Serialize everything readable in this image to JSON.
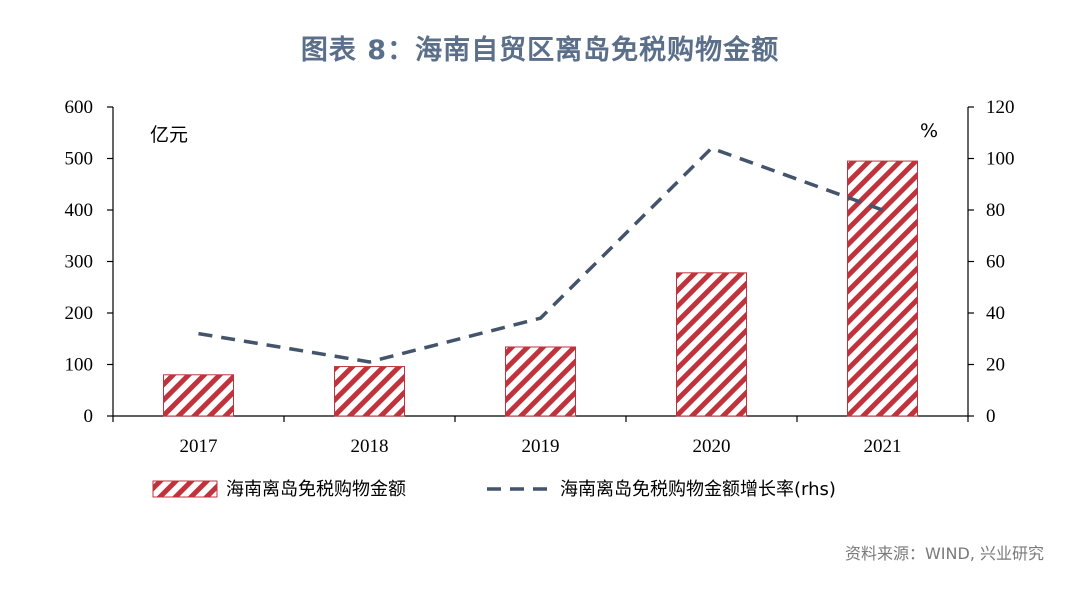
{
  "title": "图表 8：海南自贸区离岛免税购物金额",
  "source": "资料来源：WIND, 兴业研究",
  "colors": {
    "bar": "#c0323c",
    "line": "#44546a",
    "title": "#5b6f8a"
  },
  "chart_data": {
    "type": "bar",
    "categories": [
      "2017",
      "2018",
      "2019",
      "2020",
      "2021"
    ],
    "series": [
      {
        "name": "海南离岛免税购物金额",
        "type": "bar",
        "axis": "left",
        "values": [
          80,
          96,
          134,
          278,
          495
        ]
      },
      {
        "name": "海南离岛免税购物金额增长率(rhs)",
        "type": "line",
        "axis": "right",
        "values": [
          32,
          21,
          38,
          104,
          80
        ]
      }
    ],
    "y_left": {
      "unit": "亿元",
      "min": 0,
      "max": 600,
      "ticks": [
        0,
        100,
        200,
        300,
        400,
        500,
        600
      ]
    },
    "y_right": {
      "unit": "%",
      "min": 0,
      "max": 120,
      "ticks": [
        0,
        20,
        40,
        60,
        80,
        100,
        120
      ]
    },
    "legend_position": "bottom",
    "grid": false
  }
}
